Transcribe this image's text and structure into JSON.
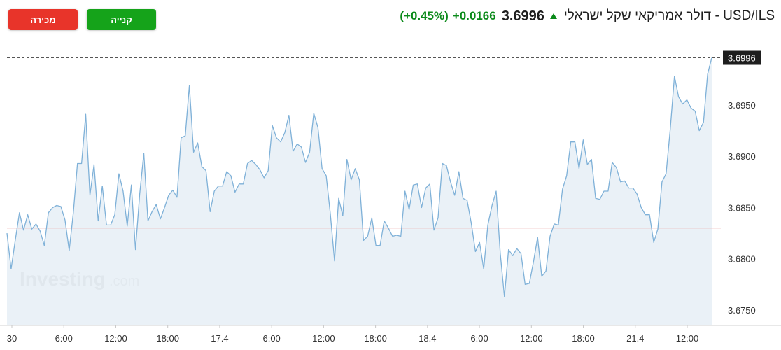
{
  "header": {
    "instrument": "USD/ILS - דולר אמריקאי שקל ישראלי",
    "price": "3.6996",
    "change_abs": "+0.0166",
    "change_pct": "(+0.45%)",
    "direction_icon": "up-arrow-icon"
  },
  "buttons": {
    "sell_label": "מכירה",
    "buy_label": "קנייה"
  },
  "watermark": {
    "brand": "Investing",
    "suffix": ".com"
  },
  "colors": {
    "up": "#0b8a1a",
    "sell": "#e8342a",
    "buy": "#15a31a",
    "line": "#7fb1d8",
    "area": "#e6eef6",
    "reference_line": "#e8a6a6",
    "current_badge": "#1e1e1e"
  },
  "chart_data": {
    "type": "area",
    "ylim": [
      3.6735,
      3.701
    ],
    "y_ticks": [
      "3.6750",
      "3.6800",
      "3.6850",
      "3.6900",
      "3.6950"
    ],
    "x_ticks": [
      "30",
      "6:00",
      "12:00",
      "18:00",
      "17.4",
      "6:00",
      "12:00",
      "18:00",
      "18.4",
      "6:00",
      "12:00",
      "18:00",
      "21.4",
      "12:00"
    ],
    "current_value": 3.6996,
    "current_label": "3.6996",
    "reference_value": 3.683,
    "grid": false,
    "series": [
      {
        "values": [
          3.6825,
          3.679,
          3.6818,
          3.6845,
          3.6828,
          3.6843,
          3.6829,
          3.6834,
          3.6827,
          3.6813,
          3.6845,
          3.685,
          3.6852,
          3.6851,
          3.6838,
          3.6808,
          3.6845,
          3.6893,
          3.6893,
          3.6941,
          3.6862,
          3.6892,
          3.6837,
          3.6871,
          3.6833,
          3.6833,
          3.6843,
          3.6883,
          3.6866,
          3.6832,
          3.6872,
          3.6809,
          3.6863,
          3.6903,
          3.6837,
          3.6846,
          3.6853,
          3.6839,
          3.685,
          3.6862,
          3.6867,
          3.686,
          3.6918,
          3.692,
          3.6969,
          3.6904,
          3.6913,
          3.689,
          3.6886,
          3.6846,
          3.6866,
          3.6871,
          3.6871,
          3.6885,
          3.6881,
          3.6865,
          3.6873,
          3.6873,
          3.6893,
          3.6896,
          3.6892,
          3.6887,
          3.6879,
          3.6886,
          3.693,
          3.6918,
          3.6914,
          3.6923,
          3.694,
          3.6905,
          3.6912,
          3.6909,
          3.6894,
          3.6904,
          3.6942,
          3.6928,
          3.6888,
          3.6881,
          3.6844,
          3.6798,
          3.6859,
          3.6842,
          3.6897,
          3.6877,
          3.6888,
          3.6877,
          3.6818,
          3.6822,
          3.684,
          3.6813,
          3.6813,
          3.6837,
          3.683,
          3.6822,
          3.6823,
          3.6822,
          3.6866,
          3.6848,
          3.6872,
          3.6873,
          3.685,
          3.6869,
          3.6873,
          3.6828,
          3.684,
          3.6893,
          3.6891,
          3.6875,
          3.6862,
          3.6885,
          3.6859,
          3.6857,
          3.6835,
          3.6807,
          3.6816,
          3.679,
          3.6833,
          3.6852,
          3.6866,
          3.6805,
          3.6763,
          3.6809,
          3.6803,
          3.681,
          3.6805,
          3.6775,
          3.6776,
          3.6797,
          3.6821,
          3.6783,
          3.6788,
          3.6822,
          3.6834,
          3.6833,
          3.6868,
          3.6881,
          3.6914,
          3.6914,
          3.6888,
          3.6916,
          3.6892,
          3.6897,
          3.6859,
          3.6858,
          3.6866,
          3.6866,
          3.6894,
          3.6889,
          3.6875,
          3.6876,
          3.6869,
          3.6869,
          3.6863,
          3.685,
          3.6843,
          3.6843,
          3.6816,
          3.6829,
          3.6875,
          3.6883,
          3.6927,
          3.6978,
          3.6958,
          3.6951,
          3.6955,
          3.6947,
          3.6944,
          3.6925,
          3.6933,
          3.698,
          3.6996
        ]
      }
    ]
  }
}
